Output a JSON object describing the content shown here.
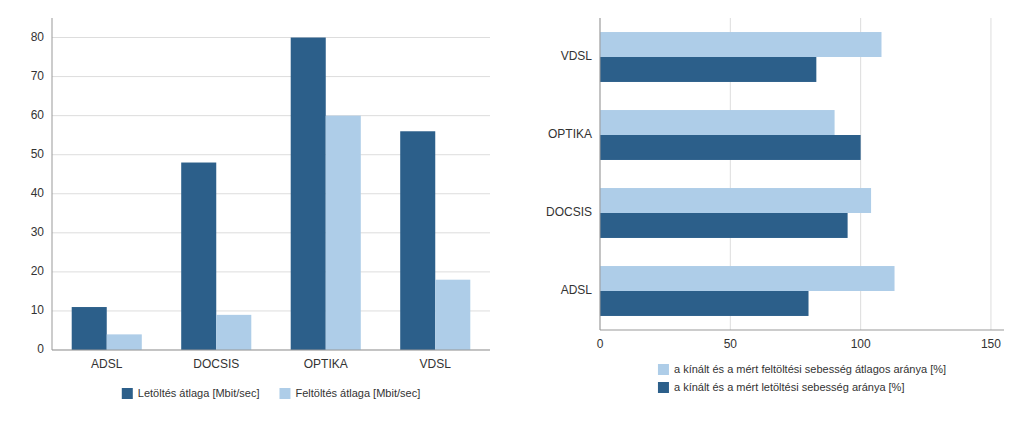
{
  "chart_data": [
    {
      "type": "bar",
      "categories": [
        "ADSL",
        "DOCSIS",
        "OPTIKA",
        "VDSL"
      ],
      "series": [
        {
          "name": "Letöltés átlaga [Mbit/sec]",
          "color": "#2C5F8A",
          "values": [
            11,
            48,
            80,
            56
          ]
        },
        {
          "name": "Feltöltés átlaga [Mbit/sec]",
          "color": "#AECDE8",
          "values": [
            4,
            9,
            60,
            18
          ]
        }
      ],
      "ylim": [
        0,
        85
      ],
      "yticks": [
        0,
        10,
        20,
        30,
        40,
        50,
        60,
        70,
        80
      ],
      "grid": true,
      "legend": "bottom"
    },
    {
      "type": "bar",
      "orientation": "horizontal",
      "categories": [
        "ADSL",
        "DOCSIS",
        "OPTIKA",
        "VDSL"
      ],
      "series": [
        {
          "name": "a kínált és a mért feltöltési sebesség átlagos aránya [%]",
          "color": "#AECDE8",
          "values": [
            113,
            104,
            90,
            108
          ]
        },
        {
          "name": "a kínált és a mért letöltési sebesség aránya [%]",
          "color": "#2C5F8A",
          "values": [
            80,
            95,
            100,
            83
          ]
        }
      ],
      "xlim": [
        0,
        155
      ],
      "xticks": [
        0,
        50,
        100,
        150
      ],
      "grid": true,
      "legend": "bottom"
    }
  ]
}
